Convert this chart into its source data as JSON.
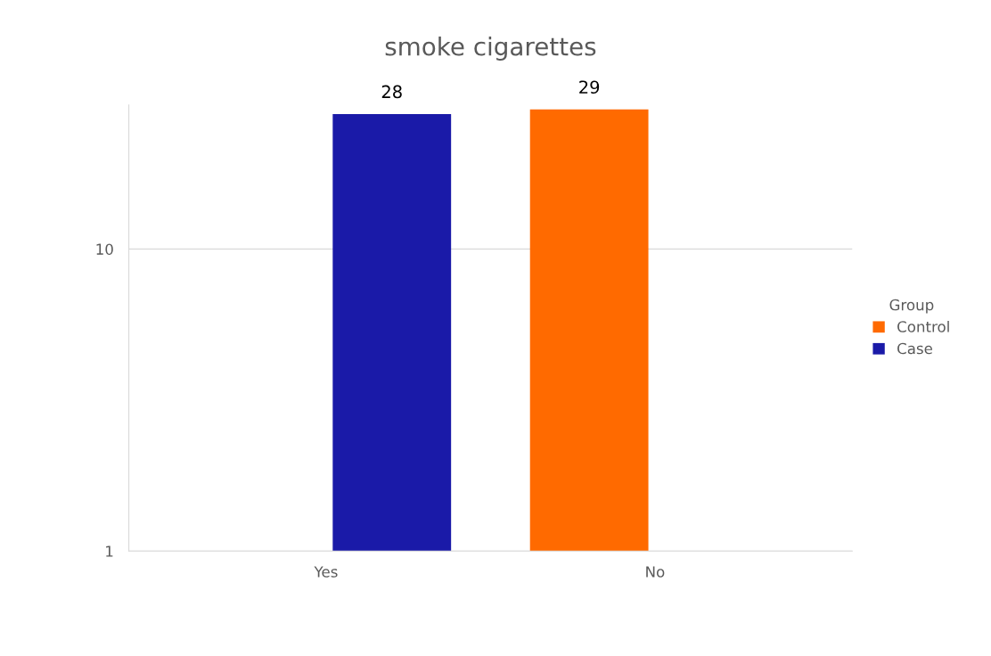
{
  "chart_data": {
    "type": "bar",
    "title": "smoke cigarettes",
    "categories": [
      "Yes",
      "No"
    ],
    "series": [
      {
        "name": "Control",
        "color": "#ff6a00",
        "values": [
          null,
          29
        ]
      },
      {
        "name": "Case",
        "color": "#1a1aa8",
        "values": [
          28,
          null
        ]
      }
    ],
    "log": "y",
    "ylim": [
      1,
      30
    ],
    "yticks": [
      1,
      10
    ],
    "grid": "y",
    "legend": "right",
    "legend_title": "Group",
    "data_labels": true
  }
}
